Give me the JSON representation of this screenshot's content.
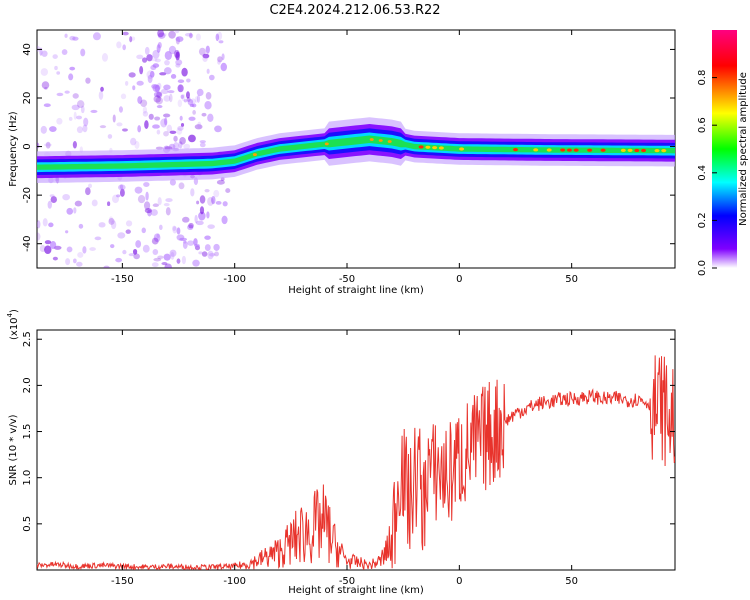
{
  "title": "C2E4.2024.212.06.53.R22",
  "chart_data": [
    {
      "type": "heatmap",
      "xlabel": "Height of straight line (km)",
      "ylabel": "Frequency (Hz)",
      "xlim": [
        -188,
        96
      ],
      "ylim": [
        -50,
        48
      ],
      "xticks": [
        -150,
        -100,
        -50,
        0,
        50
      ],
      "yticks": [
        -40,
        -20,
        0,
        20,
        40
      ],
      "ridge": {
        "x": [
          -188,
          -150,
          -130,
          -110,
          -100,
          -90,
          -80,
          -70,
          -60,
          -50,
          -40,
          -30,
          -20,
          0,
          20,
          40,
          60,
          80,
          96
        ],
        "freq": [
          -8.5,
          -8,
          -7.5,
          -7,
          -6,
          -3,
          -1,
          0,
          1,
          2,
          3,
          2,
          0,
          -1,
          -1.2,
          -1.4,
          -1.5,
          -1.6,
          -1.7
        ]
      },
      "colorbar": {
        "label": "Normalized spectral amplitude",
        "range": [
          0,
          1
        ],
        "ticks": [
          "0.0",
          "0.2",
          "0.4",
          "0.6",
          "0.8"
        ],
        "colors": [
          "#ffffff",
          "#8000ff",
          "#0000ff",
          "#00ffff",
          "#00ff00",
          "#ffff00",
          "#ff0000",
          "#ff0080"
        ]
      }
    },
    {
      "type": "line",
      "xlabel": "Height of straight line (km)",
      "ylabel": "SNR (10 * v/v)",
      "yscale_label": "(x10",
      "yscale_exp": "4",
      "yscale_close": ")",
      "xlim": [
        -188,
        96
      ],
      "ylim": [
        0,
        2.6
      ],
      "xticks": [
        -150,
        -100,
        -50,
        0,
        50
      ],
      "yticks": [
        0.5,
        1.0,
        1.5,
        2.0,
        2.5
      ],
      "ytick_labels": [
        "0.5",
        "1.0",
        "1.5",
        "2.0",
        "2.5"
      ],
      "series": [
        {
          "color": "#e8332c",
          "x": [
            -188,
            -180,
            -170,
            -160,
            -150,
            -140,
            -130,
            -120,
            -110,
            -100,
            -95,
            -90,
            -85,
            -80,
            -75,
            -70,
            -65,
            -60,
            -55,
            -50,
            -45,
            -40,
            -35,
            -30,
            -28,
            -26,
            -24,
            -22,
            -20,
            -18,
            -16,
            -14,
            -12,
            -10,
            -5,
            0,
            5,
            10,
            15,
            20,
            25,
            30,
            35,
            40,
            45,
            50,
            55,
            60,
            65,
            70,
            75,
            80,
            85,
            88,
            90,
            92,
            94,
            96
          ],
          "y": [
            0.05,
            0.06,
            0.04,
            0.05,
            0.04,
            0.03,
            0.04,
            0.03,
            0.03,
            0.04,
            0.06,
            0.1,
            0.15,
            0.2,
            0.3,
            0.4,
            0.45,
            0.5,
            0.25,
            0.1,
            0.08,
            0.05,
            0.1,
            0.3,
            0.8,
            1.2,
            0.9,
            0.7,
            1.0,
            1.1,
            0.6,
            1.2,
            1.0,
            1.1,
            1.0,
            1.2,
            1.3,
            1.4,
            1.5,
            1.6,
            1.7,
            1.75,
            1.8,
            1.82,
            1.85,
            1.85,
            1.87,
            1.88,
            1.85,
            1.86,
            1.84,
            1.85,
            1.8,
            1.75,
            1.8,
            1.7,
            1.6,
            1.7
          ]
        }
      ]
    }
  ]
}
